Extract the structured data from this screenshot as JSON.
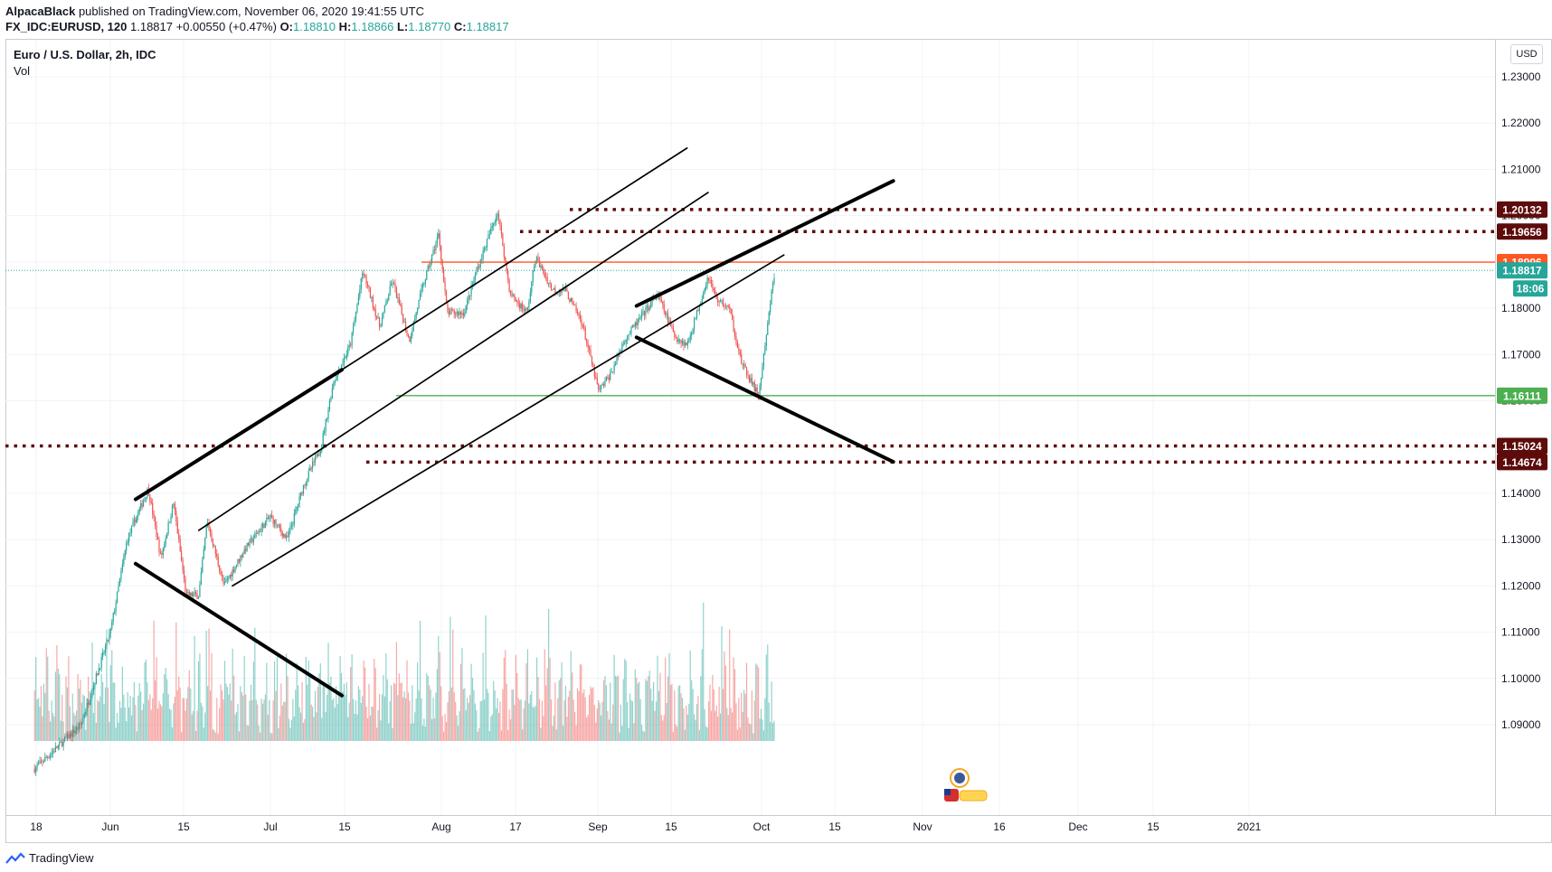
{
  "header": {
    "author": "AlpacaBlack",
    "published": "published on TradingView.com, November 06, 2020 19:41:55 UTC",
    "symbol": "FX_IDC:EURUSD, 120",
    "last": "1.18817",
    "change": "+0.00550 (+0.47%)",
    "o_label": "O:",
    "o": "1.18810",
    "h_label": "H:",
    "h": "1.18866",
    "l_label": "L:",
    "l": "1.18770",
    "c_label": "C:",
    "c": "1.18817"
  },
  "legend": {
    "title": "Euro / U.S. Dollar, 2h, IDC",
    "vol": "Vol"
  },
  "currency_button": "USD",
  "footer": {
    "brand": "TradingView"
  },
  "colors": {
    "up": "#26a69a",
    "down": "#ef5350",
    "support": "#4caf50",
    "resistance": "#ff5722",
    "dotted_level": "#5d0b0b",
    "current_price": "#26a69a"
  },
  "chart_data": {
    "type": "candlestick",
    "x_tick_labels": [
      "18",
      "Jun",
      "15",
      "Jul",
      "15",
      "Aug",
      "17",
      "Sep",
      "15",
      "Oct",
      "15",
      "Nov",
      "16",
      "Dec",
      "15",
      "2021"
    ],
    "y_tick_labels": [
      "1.23000",
      "1.22000",
      "1.21000",
      "1.20000",
      "1.19000",
      "1.18000",
      "1.17000",
      "1.16000",
      "1.15000",
      "1.14000",
      "1.13000",
      "1.12000",
      "1.11000",
      "1.10000",
      "1.09000"
    ],
    "ylim": [
      1.087,
      1.2395
    ],
    "price_path": [
      {
        "date": "2020-05-14",
        "price": 1.0805
      },
      {
        "date": "2020-05-25",
        "price": 1.09
      },
      {
        "date": "2020-06-01",
        "price": 1.11
      },
      {
        "date": "2020-06-05",
        "price": 1.13
      },
      {
        "date": "2020-06-10",
        "price": 1.141
      },
      {
        "date": "2020-06-13",
        "price": 1.126
      },
      {
        "date": "2020-06-16",
        "price": 1.138
      },
      {
        "date": "2020-06-19",
        "price": 1.118
      },
      {
        "date": "2020-06-22",
        "price": 1.118
      },
      {
        "date": "2020-06-24",
        "price": 1.134
      },
      {
        "date": "2020-06-28",
        "price": 1.12
      },
      {
        "date": "2020-07-03",
        "price": 1.128
      },
      {
        "date": "2020-07-09",
        "price": 1.135
      },
      {
        "date": "2020-07-13",
        "price": 1.13
      },
      {
        "date": "2020-07-17",
        "price": 1.142
      },
      {
        "date": "2020-07-21",
        "price": 1.15
      },
      {
        "date": "2020-07-24",
        "price": 1.164
      },
      {
        "date": "2020-07-28",
        "price": 1.172
      },
      {
        "date": "2020-07-31",
        "price": 1.188
      },
      {
        "date": "2020-08-04",
        "price": 1.176
      },
      {
        "date": "2020-08-07",
        "price": 1.186
      },
      {
        "date": "2020-08-11",
        "price": 1.173
      },
      {
        "date": "2020-08-14",
        "price": 1.184
      },
      {
        "date": "2020-08-18",
        "price": 1.196
      },
      {
        "date": "2020-08-20",
        "price": 1.179
      },
      {
        "date": "2020-08-24",
        "price": 1.179
      },
      {
        "date": "2020-08-27",
        "price": 1.188
      },
      {
        "date": "2020-09-01",
        "price": 1.201
      },
      {
        "date": "2020-09-04",
        "price": 1.183
      },
      {
        "date": "2020-09-08",
        "price": 1.179
      },
      {
        "date": "2020-09-10",
        "price": 1.191
      },
      {
        "date": "2020-09-14",
        "price": 1.184
      },
      {
        "date": "2020-09-17",
        "price": 1.184
      },
      {
        "date": "2020-09-21",
        "price": 1.177
      },
      {
        "date": "2020-09-25",
        "price": 1.162
      },
      {
        "date": "2020-09-28",
        "price": 1.166
      },
      {
        "date": "2020-10-01",
        "price": 1.173
      },
      {
        "date": "2020-10-05",
        "price": 1.178
      },
      {
        "date": "2020-10-09",
        "price": 1.183
      },
      {
        "date": "2020-10-13",
        "price": 1.174
      },
      {
        "date": "2020-10-16",
        "price": 1.172
      },
      {
        "date": "2020-10-21",
        "price": 1.187
      },
      {
        "date": "2020-10-23",
        "price": 1.182
      },
      {
        "date": "2020-10-26",
        "price": 1.18
      },
      {
        "date": "2020-10-29",
        "price": 1.168
      },
      {
        "date": "2020-11-02",
        "price": 1.161
      },
      {
        "date": "2020-11-04",
        "price": 1.175
      },
      {
        "date": "2020-11-05",
        "price": 1.183
      },
      {
        "date": "2020-11-06",
        "price": 1.1882
      }
    ],
    "horizontal_levels": [
      {
        "price": 1.20132,
        "label": "1.20132",
        "style": "dotted"
      },
      {
        "price": 1.19656,
        "label": "1.19656",
        "style": "dotted"
      },
      {
        "price": 1.18996,
        "label": "1.18996",
        "style": "solid-orange"
      },
      {
        "price": 1.18817,
        "label": "1.18817",
        "style": "current-price"
      },
      {
        "price": 1.16111,
        "label": "1.16111",
        "style": "solid-green"
      },
      {
        "price": 1.15024,
        "label": "1.15024",
        "style": "dotted"
      },
      {
        "price": 1.14674,
        "label": "1.14674",
        "style": "dotted"
      }
    ],
    "countdown": "18:06",
    "trend_lines": [
      {
        "from": {
          "date": "2020-06-07",
          "price": 1.1387
        },
        "to": {
          "date": "2020-07-26",
          "price": 1.1667
        },
        "weight": "thick"
      },
      {
        "from": {
          "date": "2020-06-07",
          "price": 1.1248
        },
        "to": {
          "date": "2020-07-26",
          "price": 1.0963
        },
        "weight": "thick"
      },
      {
        "from": {
          "date": "2020-07-26",
          "price": 1.1667
        },
        "to": {
          "date": "2020-10-16",
          "price": 1.2146
        },
        "weight": "thin"
      },
      {
        "from": {
          "date": "2020-06-22",
          "price": 1.132
        },
        "to": {
          "date": "2020-10-21",
          "price": 1.205
        },
        "weight": "thin"
      },
      {
        "from": {
          "date": "2020-06-30",
          "price": 1.12
        },
        "to": {
          "date": "2020-11-08",
          "price": 1.1915
        },
        "weight": "thin"
      },
      {
        "from": {
          "date": "2020-10-04",
          "price": 1.1805
        },
        "to": {
          "date": "2020-12-04",
          "price": 1.2075
        },
        "weight": "thick"
      },
      {
        "from": {
          "date": "2020-10-04",
          "price": 1.1737
        },
        "to": {
          "date": "2020-12-04",
          "price": 1.1468
        },
        "weight": "thick"
      }
    ]
  }
}
